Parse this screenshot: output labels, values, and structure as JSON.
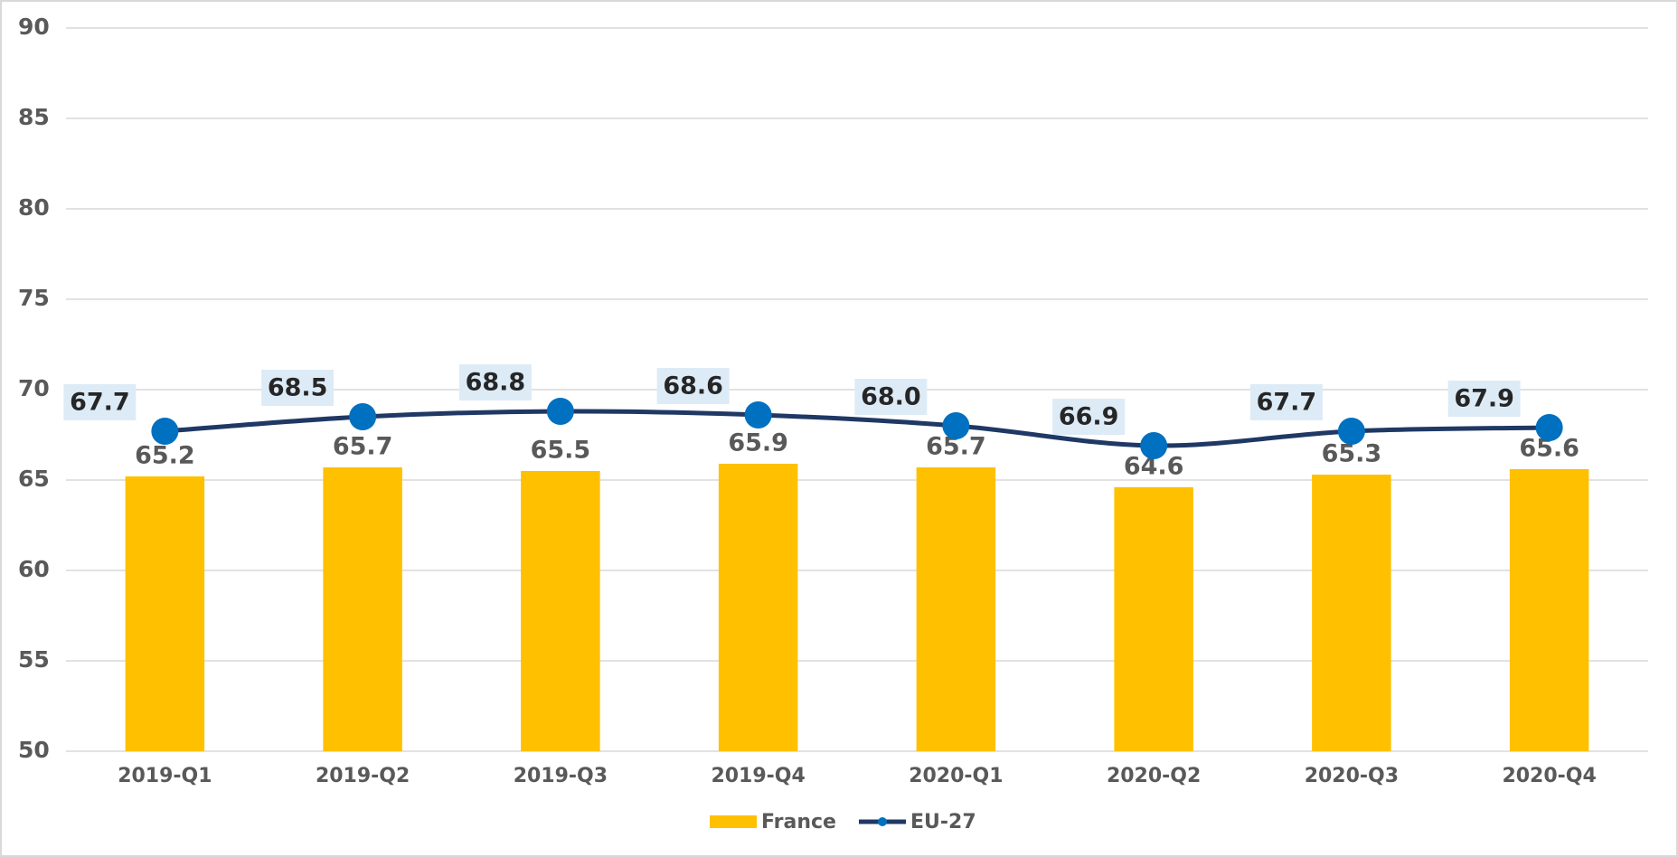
{
  "chart_data": {
    "type": "bar-line",
    "categories": [
      "2019-Q1",
      "2019-Q2",
      "2019-Q3",
      "2019-Q4",
      "2020-Q1",
      "2020-Q2",
      "2020-Q3",
      "2020-Q4"
    ],
    "series": [
      {
        "name": "France",
        "type": "bar",
        "color": "#FFC000",
        "values": [
          65.2,
          65.7,
          65.5,
          65.9,
          65.7,
          64.6,
          65.3,
          65.6
        ]
      },
      {
        "name": "EU-27",
        "type": "line",
        "color": "#1F3864",
        "marker_color": "#0070C0",
        "values": [
          67.7,
          68.5,
          68.8,
          68.6,
          68.0,
          66.9,
          67.7,
          67.9
        ],
        "value_labels": [
          "67.7",
          "68.5",
          "68.8",
          "68.6",
          "68.0",
          "66.9",
          "67.7",
          "67.9"
        ]
      }
    ],
    "ylim": [
      50,
      90
    ],
    "yticks": [
      50,
      55,
      60,
      65,
      70,
      75,
      80,
      85,
      90
    ],
    "grid": true,
    "legend": "bottom"
  }
}
